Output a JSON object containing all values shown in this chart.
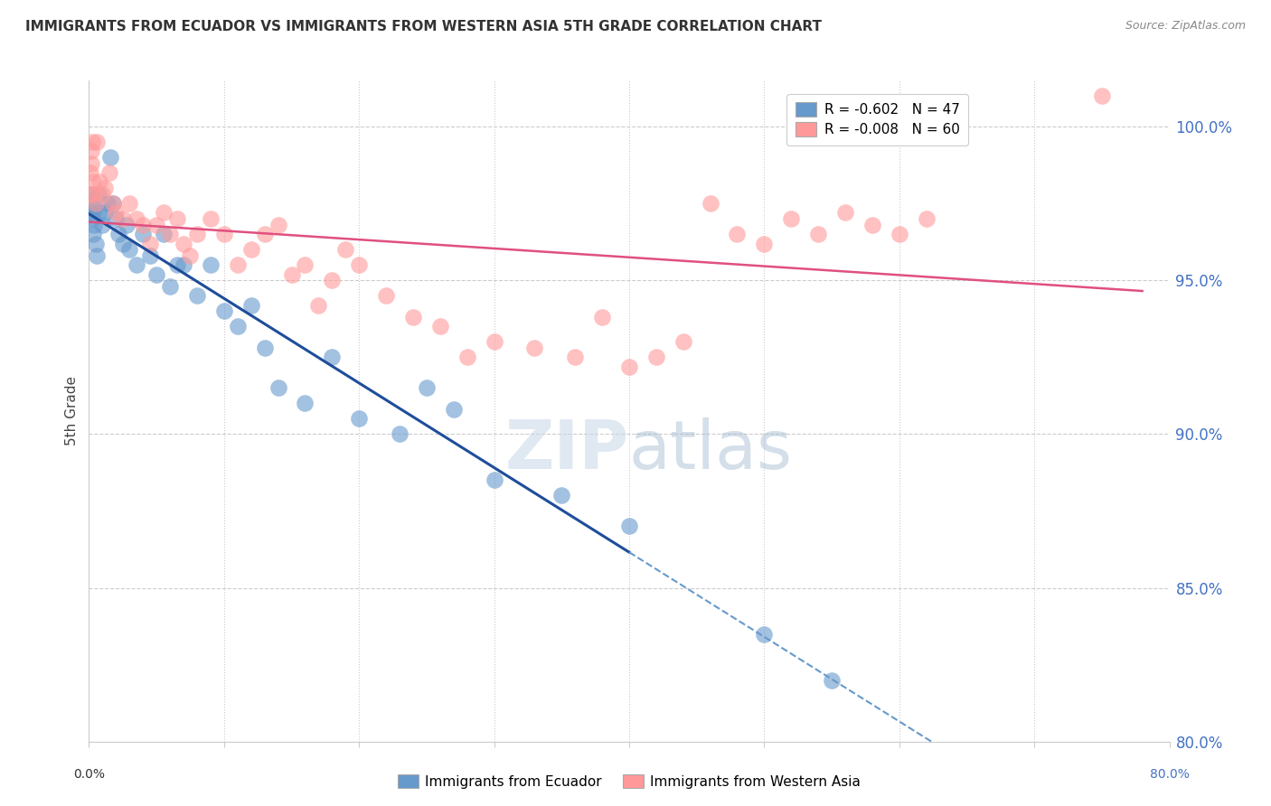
{
  "title": "IMMIGRANTS FROM ECUADOR VS IMMIGRANTS FROM WESTERN ASIA 5TH GRADE CORRELATION CHART",
  "source": "Source: ZipAtlas.com",
  "ylabel": "5th Grade",
  "legend_ecuador": "R = -0.602   N = 47",
  "legend_western_asia": "R = -0.008   N = 60",
  "legend_label1": "Immigrants from Ecuador",
  "legend_label2": "Immigrants from Western Asia",
  "y_ticks": [
    80.0,
    85.0,
    90.0,
    95.0,
    100.0
  ],
  "x_min": 0.0,
  "x_max": 80.0,
  "y_min": 80.0,
  "y_max": 101.5,
  "blue_color": "#6699CC",
  "pink_color": "#FF9999",
  "blue_line_color": "#1E4D9B",
  "pink_line_color": "#E05080",
  "watermark_zip": "ZIP",
  "watermark_atlas": "atlas",
  "blue_x": [
    0.1,
    0.15,
    0.2,
    0.25,
    0.3,
    0.35,
    0.4,
    0.5,
    0.6,
    0.7,
    0.8,
    1.0,
    1.2,
    1.4,
    1.6,
    1.8,
    2.0,
    2.2,
    2.5,
    2.8,
    3.0,
    3.5,
    4.0,
    4.5,
    5.0,
    5.5,
    6.0,
    6.5,
    7.0,
    8.0,
    9.0,
    10.0,
    11.0,
    12.0,
    13.0,
    14.0,
    16.0,
    18.0,
    20.0,
    23.0,
    25.0,
    27.0,
    30.0,
    35.0,
    40.0,
    50.0,
    55.0
  ],
  "blue_y": [
    97.2,
    97.5,
    97.8,
    97.0,
    96.5,
    96.8,
    97.3,
    96.2,
    95.8,
    97.8,
    97.2,
    96.8,
    97.2,
    97.5,
    99.0,
    97.5,
    97.0,
    96.5,
    96.2,
    96.8,
    96.0,
    95.5,
    96.5,
    95.8,
    95.2,
    96.5,
    94.8,
    95.5,
    95.5,
    94.5,
    95.5,
    94.0,
    93.5,
    94.2,
    92.8,
    91.5,
    91.0,
    92.5,
    90.5,
    90.0,
    91.5,
    90.8,
    88.5,
    88.0,
    87.0,
    83.5,
    82.0
  ],
  "pink_x": [
    0.05,
    0.1,
    0.15,
    0.2,
    0.25,
    0.3,
    0.4,
    0.5,
    0.6,
    0.8,
    1.0,
    1.2,
    1.5,
    1.8,
    2.0,
    2.5,
    3.0,
    3.5,
    4.0,
    4.5,
    5.0,
    5.5,
    6.0,
    6.5,
    7.0,
    7.5,
    8.0,
    9.0,
    10.0,
    11.0,
    12.0,
    13.0,
    14.0,
    15.0,
    16.0,
    17.0,
    18.0,
    19.0,
    20.0,
    22.0,
    24.0,
    26.0,
    28.0,
    30.0,
    33.0,
    36.0,
    38.0,
    40.0,
    42.0,
    44.0,
    46.0,
    48.0,
    50.0,
    52.0,
    54.0,
    56.0,
    58.0,
    60.0,
    62.0,
    75.0
  ],
  "pink_y": [
    97.8,
    98.5,
    99.2,
    98.8,
    99.5,
    98.2,
    97.8,
    97.5,
    99.5,
    98.2,
    97.8,
    98.0,
    98.5,
    97.5,
    97.2,
    97.0,
    97.5,
    97.0,
    96.8,
    96.2,
    96.8,
    97.2,
    96.5,
    97.0,
    96.2,
    95.8,
    96.5,
    97.0,
    96.5,
    95.5,
    96.0,
    96.5,
    96.8,
    95.2,
    95.5,
    94.2,
    95.0,
    96.0,
    95.5,
    94.5,
    93.8,
    93.5,
    92.5,
    93.0,
    92.8,
    92.5,
    93.8,
    92.2,
    92.5,
    93.0,
    97.5,
    96.5,
    96.2,
    97.0,
    96.5,
    97.2,
    96.8,
    96.5,
    97.0,
    101.0
  ]
}
